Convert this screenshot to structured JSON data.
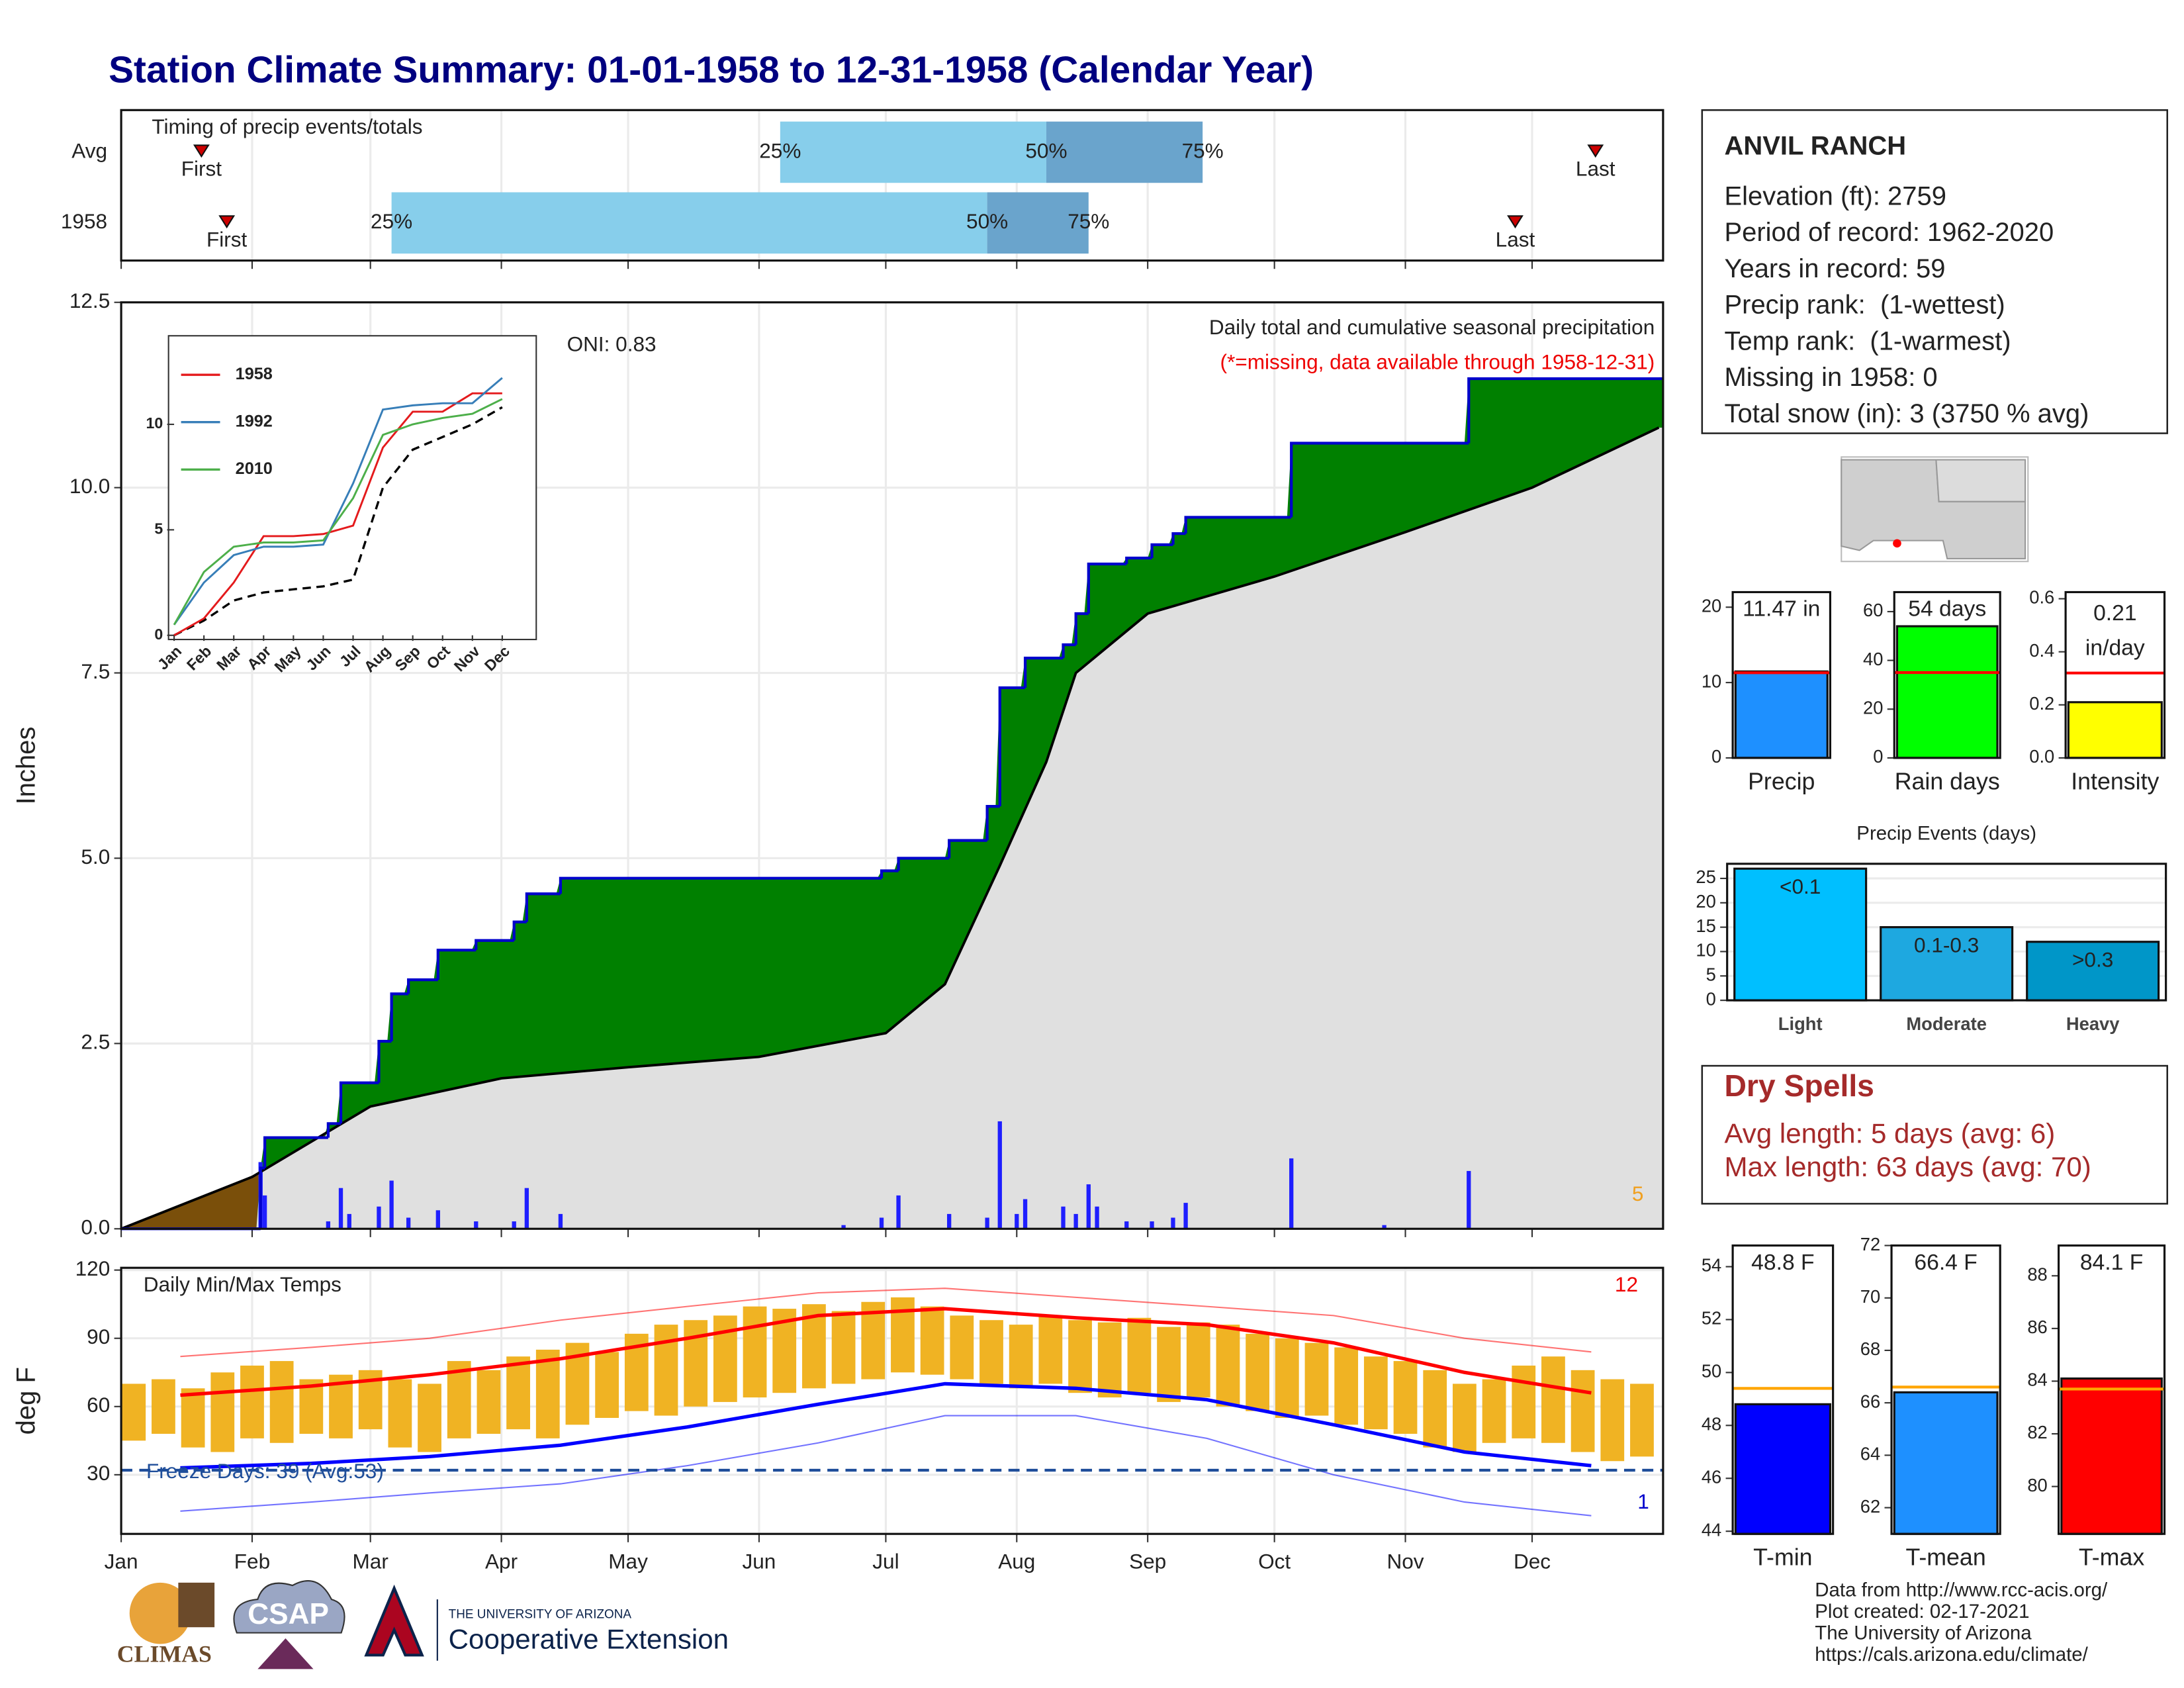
{
  "title": "Station Climate Summary: 01-01-1958 to 12-31-1958 (Calendar Year)",
  "station": {
    "name": "ANVIL RANCH",
    "lines": [
      "Elevation (ft): 2759",
      "Period of record: 1962-2020",
      "Years in record: 59",
      "Precip rank:  (1-wettest)",
      "Temp rank:  (1-warmest)",
      "Missing in 1958: 0",
      "Total snow (in): 3 (3750 % avg)"
    ]
  },
  "dry_spells": {
    "title": "Dry Spells",
    "lines": [
      "Avg length: 5 days (avg: 6)",
      "Max length: 63 days (avg: 70)"
    ]
  },
  "footer": [
    "Data from http://www.rcc-acis.org/",
    "Plot created: 02-17-2021",
    "The University of Arizona",
    "https://cals.arizona.edu/climate/"
  ],
  "logos": {
    "climas": "CLIMAS",
    "csap": "CSAP",
    "university": "THE UNIVERSITY OF ARIZONA",
    "extension": "Cooperative Extension"
  },
  "chart_data": [
    {
      "type": "timing",
      "title": "Timing of precip events/totals",
      "xlim": [
        1,
        366
      ],
      "series": [
        {
          "name": "Avg",
          "first": 20,
          "quantiles": [
            157,
            220,
            257
          ],
          "last": 350
        },
        {
          "name": "1958",
          "first": 26,
          "quantiles": [
            65,
            206,
            230
          ],
          "last": 331
        }
      ],
      "quantile_labels": [
        "25%",
        "50%",
        "75%"
      ],
      "first_label": "First",
      "last_label": "Last",
      "colors": [
        "#87ceeb",
        "#6aa4cc"
      ],
      "marker_color": "#cc0000"
    },
    {
      "type": "cumulative",
      "title": "Daily total and cumulative seasonal precipitation",
      "subtitle": "(*=missing, data available through 1958-12-31)",
      "annotation": "ONI: 0.83",
      "corner_label": 5,
      "y_label": "Inches",
      "xlim": [
        1,
        366
      ],
      "ylim": [
        0,
        12.5
      ],
      "yticks": [
        {
          "value": 0,
          "label": "0.0"
        },
        2.5,
        {
          "value": 5,
          "label": "5.0"
        },
        7.5,
        {
          "value": 10,
          "label": "10.0"
        },
        12.5
      ],
      "grid": true,
      "observed": {
        "x": [
          1,
          34,
          35,
          50,
          53,
          62,
          65,
          69,
          76,
          85,
          94,
          97,
          105,
          181,
          185,
          197,
          206,
          209,
          215,
          224,
          227,
          230,
          239,
          245,
          250,
          253,
          278,
          320,
          365
        ],
        "values": [
          0,
          0.82,
          1.23,
          1.42,
          1.97,
          2.53,
          3.17,
          3.36,
          3.76,
          3.89,
          4.14,
          4.52,
          4.73,
          4.83,
          5.0,
          5.24,
          5.7,
          7.3,
          7.7,
          7.88,
          8.3,
          8.97,
          9.05,
          9.23,
          9.38,
          9.6,
          10.6,
          11.47,
          11.47
        ],
        "color": "#0000cc"
      },
      "average": {
        "x": [
          1,
          32,
          60,
          91,
          121,
          152,
          182,
          196,
          209,
          220,
          227,
          244,
          274,
          305,
          335,
          365
        ],
        "values": [
          0,
          0.7,
          1.65,
          2.03,
          2.18,
          2.32,
          2.64,
          3.3,
          4.9,
          6.3,
          7.5,
          8.3,
          8.8,
          9.4,
          10.0,
          10.81
        ],
        "color": "#000000"
      },
      "daily": {
        "x": [
          34,
          35,
          50,
          53,
          55,
          62,
          65,
          69,
          76,
          85,
          94,
          97,
          105,
          172,
          181,
          185,
          197,
          206,
          209,
          213,
          215,
          224,
          227,
          230,
          232,
          239,
          245,
          250,
          253,
          278,
          300,
          320
        ],
        "values": [
          0.9,
          0.45,
          0.1,
          0.55,
          0.2,
          0.3,
          0.65,
          0.15,
          0.25,
          0.1,
          0.1,
          0.55,
          0.2,
          0.05,
          0.15,
          0.45,
          0.2,
          0.15,
          1.45,
          0.2,
          0.4,
          0.3,
          0.2,
          0.6,
          0.3,
          0.1,
          0.1,
          0.15,
          0.35,
          0.95,
          0.05,
          0.78
        ],
        "color": "#1f1fff"
      },
      "fill_above": "#008000",
      "fill_below": "#7a4f0a",
      "fill_base": "#e0e0e0"
    },
    {
      "type": "line",
      "categories": [
        "Jan",
        "Feb",
        "Mar",
        "Apr",
        "May",
        "Jun",
        "Jul",
        "Aug",
        "Sep",
        "Oct",
        "Nov",
        "Dec"
      ],
      "ylim": [
        0,
        14
      ],
      "yticks": [
        0,
        5,
        10
      ],
      "series": [
        {
          "name": "1958",
          "color": "#e41a1c",
          "values": [
            0,
            0.8,
            2.5,
            4.7,
            4.7,
            4.8,
            5.2,
            8.9,
            10.6,
            10.6,
            11.47,
            11.47
          ]
        },
        {
          "name": "1992",
          "color": "#377eb8",
          "values": [
            0.5,
            2.5,
            3.8,
            4.2,
            4.2,
            4.3,
            7.2,
            10.7,
            10.9,
            11.0,
            11.0,
            12.2
          ]
        },
        {
          "name": "2010",
          "color": "#4daf4a",
          "values": [
            0.5,
            3.0,
            4.2,
            4.4,
            4.4,
            4.5,
            6.5,
            9.5,
            10.0,
            10.3,
            10.5,
            11.2
          ]
        }
      ],
      "average": [
        0,
        0.7,
        1.65,
        2.03,
        2.18,
        2.32,
        2.64,
        7.0,
        8.8,
        9.4,
        10.0,
        10.81
      ],
      "average_color": "#000000"
    },
    {
      "type": "temperature",
      "title": "Daily Min/Max Temps",
      "y_label": "deg F",
      "annotation": "Freeze Days: 39 (Avg:53)",
      "max_count": 12,
      "min_count": 1,
      "freeze": 32,
      "xlim": [
        1,
        366
      ],
      "ylim": [
        4,
        121
      ],
      "yticks": [
        30,
        60,
        90,
        120
      ],
      "grid": true,
      "xticks": [
        {
          "value": 1,
          "label": "Jan"
        },
        {
          "value": 32,
          "label": "Feb"
        },
        {
          "value": 60,
          "label": "Mar"
        },
        {
          "value": 91,
          "label": "Apr"
        },
        {
          "value": 121,
          "label": "May"
        },
        {
          "value": 152,
          "label": "Jun"
        },
        {
          "value": 182,
          "label": "Jul"
        },
        {
          "value": 213,
          "label": "Aug"
        },
        {
          "value": 244,
          "label": "Sep"
        },
        {
          "value": 274,
          "label": "Oct"
        },
        {
          "value": 305,
          "label": "Nov"
        },
        {
          "value": 335,
          "label": "Dec"
        }
      ],
      "x": [
        4,
        11,
        18,
        25,
        32,
        39,
        46,
        53,
        60,
        67,
        74,
        81,
        88,
        95,
        102,
        109,
        116,
        123,
        130,
        137,
        144,
        151,
        158,
        165,
        172,
        179,
        186,
        193,
        200,
        207,
        214,
        221,
        228,
        235,
        242,
        249,
        256,
        263,
        270,
        277,
        284,
        291,
        298,
        305,
        312,
        319,
        326,
        333,
        340,
        347,
        354,
        361
      ],
      "max": [
        70,
        72,
        68,
        75,
        78,
        80,
        72,
        74,
        76,
        72,
        70,
        80,
        76,
        82,
        85,
        88,
        84,
        92,
        96,
        98,
        100,
        104,
        103,
        105,
        102,
        106,
        108,
        104,
        100,
        98,
        96,
        100,
        98,
        97,
        99,
        95,
        97,
        96,
        92,
        90,
        88,
        86,
        82,
        80,
        76,
        70,
        72,
        78,
        82,
        76,
        72,
        70
      ],
      "min": [
        45,
        48,
        42,
        40,
        46,
        44,
        48,
        46,
        50,
        42,
        40,
        46,
        48,
        50,
        46,
        52,
        55,
        58,
        56,
        60,
        62,
        64,
        66,
        68,
        70,
        72,
        75,
        74,
        72,
        70,
        68,
        70,
        66,
        64,
        66,
        62,
        64,
        60,
        58,
        55,
        56,
        52,
        50,
        48,
        42,
        40,
        44,
        46,
        44,
        40,
        36,
        38
      ],
      "normal_x": [
        15,
        46,
        74,
        105,
        135,
        166,
        196,
        227,
        258,
        288,
        319,
        349
      ],
      "normal_max": [
        65,
        69,
        74,
        81,
        90,
        100,
        103,
        99,
        96,
        88,
        75,
        66
      ],
      "normal_min": [
        33,
        35,
        38,
        43,
        51,
        61,
        70,
        68,
        63,
        52,
        40,
        34
      ],
      "record_max": [
        82,
        86,
        90,
        98,
        104,
        110,
        112,
        108,
        104,
        100,
        90,
        84
      ],
      "record_min": [
        14,
        18,
        22,
        26,
        34,
        44,
        56,
        56,
        46,
        30,
        18,
        12
      ],
      "bar_color": "#f0b323",
      "max_color": "#ff0000",
      "min_color": "#0000ff",
      "freeze_color": "#1f4e9a"
    },
    {
      "type": "bar",
      "categories": [
        "Precip"
      ],
      "values": [
        11.47
      ],
      "value_labels": [
        "11.47 in"
      ],
      "average": 11.3,
      "average_color": "#ff0000",
      "color": "#1e90ff",
      "ylim": [
        0,
        22
      ],
      "yticks": [
        0,
        10,
        20
      ]
    },
    {
      "type": "bar",
      "categories": [
        "Rain days"
      ],
      "values": [
        54
      ],
      "value_labels": [
        "54 days"
      ],
      "average": 35,
      "average_color": "#ff0000",
      "color": "#00ff00",
      "ylim": [
        0,
        68
      ],
      "yticks": [
        0,
        20,
        40,
        60
      ]
    },
    {
      "type": "bar",
      "categories": [
        "Intensity"
      ],
      "values": [
        0.21
      ],
      "unit": "in/day",
      "average": 0.32,
      "average_color": "#ff0000",
      "color": "#ffff00",
      "ylim": [
        0,
        0.625
      ],
      "yticks": [
        {
          "value": 0,
          "label": "0.0"
        },
        0.2,
        0.4,
        0.6
      ]
    },
    {
      "type": "bar",
      "title": "Precip Events (days)",
      "categories": [
        "Light",
        "Moderate",
        "Heavy"
      ],
      "values": [
        27,
        15,
        12
      ],
      "bar_labels": [
        "<0.1",
        "0.1-0.3",
        ">0.3"
      ],
      "colors": [
        "#00bfff",
        "#1ea8e0",
        "#0096c8"
      ],
      "ylim": [
        0,
        28
      ],
      "yticks": [
        0,
        5,
        10,
        15,
        20,
        25
      ],
      "grid": true
    },
    {
      "type": "bar",
      "categories": [
        "T-min"
      ],
      "values": [
        48.8
      ],
      "value_labels": [
        "48.8 F"
      ],
      "average": 49.4,
      "average_color": "#ffa500",
      "color": "#0000ff",
      "ylim": [
        43.9,
        54.8
      ],
      "yticks": [
        44,
        46,
        48,
        50,
        52,
        54
      ]
    },
    {
      "type": "bar",
      "categories": [
        "T-mean"
      ],
      "values": [
        66.4
      ],
      "value_labels": [
        "66.4 F"
      ],
      "average": 66.6,
      "average_color": "#ffa500",
      "color": "#1e90ff",
      "ylim": [
        61,
        72
      ],
      "yticks": [
        62,
        64,
        66,
        68,
        70,
        72
      ]
    },
    {
      "type": "bar",
      "categories": [
        "T-max"
      ],
      "values": [
        84.1
      ],
      "value_labels": [
        "84.1 F"
      ],
      "average": 83.7,
      "average_color": "#ffa500",
      "color": "#ff0000",
      "ylim": [
        78.2,
        89.15
      ],
      "yticks": [
        80,
        82,
        84,
        86,
        88
      ]
    }
  ]
}
